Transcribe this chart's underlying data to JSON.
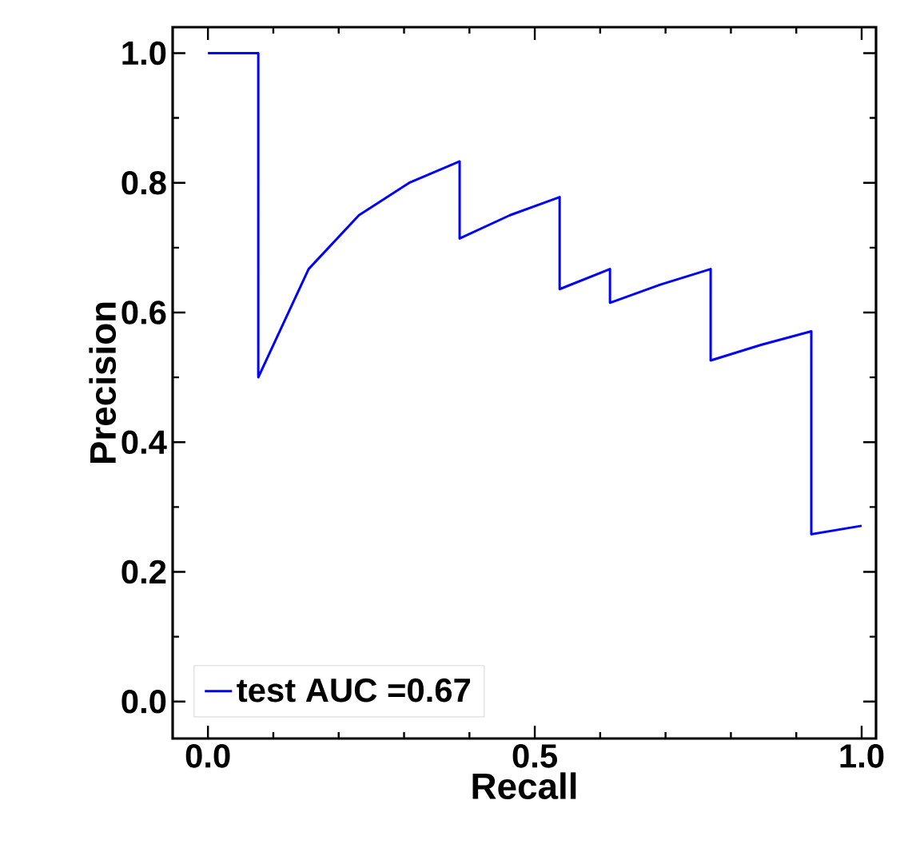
{
  "chart_data": {
    "type": "line",
    "xlabel": "Recall",
    "ylabel": "Precision",
    "xlim": [
      -0.054,
      1.022
    ],
    "ylim": [
      -0.057,
      1.04
    ],
    "xticks": [
      {
        "value": 0,
        "label": "0.0"
      },
      {
        "value": 0.5,
        "label": "0.5"
      },
      {
        "value": 1,
        "label": "1.0"
      }
    ],
    "yticks": [
      {
        "value": 0,
        "label": "0.0"
      },
      {
        "value": 0.2,
        "label": "0.2"
      },
      {
        "value": 0.4,
        "label": "0.4"
      },
      {
        "value": 0.6,
        "label": "0.6"
      },
      {
        "value": 0.8,
        "label": "0.8"
      },
      {
        "value": 1,
        "label": "1.0"
      }
    ],
    "series": [
      {
        "name": "test AUC =0.67",
        "color": "#0000ff",
        "x": [
          0,
          0.077,
          0.077,
          0.154,
          0.231,
          0.308,
          0.385,
          0.385,
          0.462,
          0.538,
          0.538,
          0.615,
          0.615,
          0.692,
          0.769,
          0.769,
          0.846,
          0.923,
          0.923,
          1.0
        ],
        "values": [
          1,
          1,
          0.5,
          0.667,
          0.75,
          0.8,
          0.833,
          0.714,
          0.75,
          0.778,
          0.636,
          0.667,
          0.615,
          0.643,
          0.667,
          0.526,
          0.55,
          0.571,
          0.258,
          0.271
        ]
      }
    ],
    "legend": "bottom left",
    "line_style": "solid",
    "marker": "none",
    "grid": false
  }
}
